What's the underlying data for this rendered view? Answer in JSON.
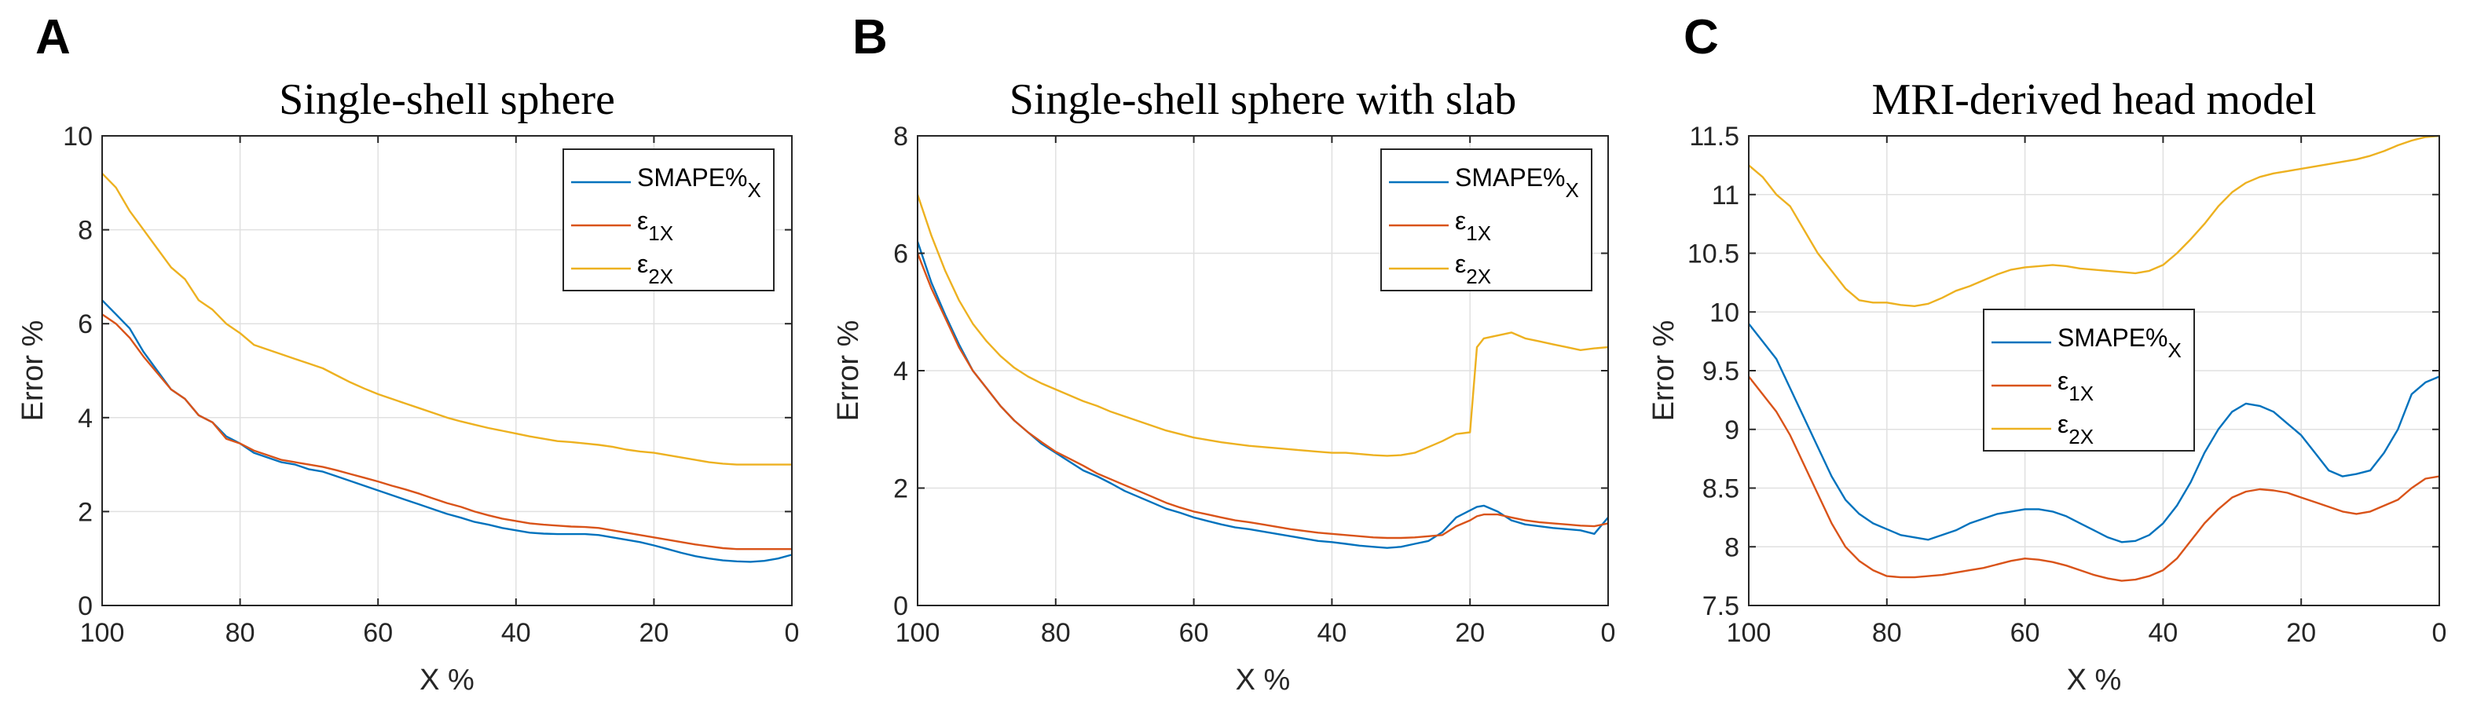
{
  "chart_data": [
    {
      "type": "line",
      "panel": "A",
      "title": "Single-shell sphere",
      "xlabel": "X %",
      "ylabel": "Error %",
      "xlim": [
        100,
        0
      ],
      "ylim": [
        0,
        10
      ],
      "xticks": [
        100,
        80,
        60,
        40,
        20,
        0
      ],
      "yticks": [
        0,
        2,
        4,
        6,
        8,
        10
      ],
      "grid": true,
      "legend_position": "top-right",
      "x": [
        100,
        98,
        96,
        94,
        92,
        90,
        88,
        86,
        84,
        82,
        80,
        78,
        76,
        74,
        72,
        70,
        68,
        66,
        64,
        62,
        60,
        58,
        56,
        54,
        52,
        50,
        48,
        46,
        44,
        42,
        40,
        38,
        36,
        34,
        32,
        30,
        28,
        26,
        24,
        22,
        20,
        18,
        16,
        14,
        12,
        10,
        8,
        6,
        4,
        2,
        0
      ],
      "series": [
        {
          "name": "SMAPE%X",
          "legend_main": "SMAPE%",
          "legend_sub": "X",
          "color": "#0072BD",
          "values": [
            6.5,
            6.2,
            5.9,
            5.4,
            5.0,
            4.6,
            4.4,
            4.05,
            3.9,
            3.6,
            3.45,
            3.25,
            3.15,
            3.05,
            3.0,
            2.9,
            2.85,
            2.75,
            2.65,
            2.55,
            2.45,
            2.35,
            2.25,
            2.15,
            2.05,
            1.95,
            1.87,
            1.78,
            1.72,
            1.65,
            1.6,
            1.55,
            1.53,
            1.52,
            1.52,
            1.52,
            1.5,
            1.45,
            1.4,
            1.35,
            1.28,
            1.2,
            1.12,
            1.05,
            1.0,
            0.96,
            0.94,
            0.93,
            0.95,
            1.0,
            1.08
          ]
        },
        {
          "name": "ε1X",
          "legend_main": "ε",
          "legend_sub": "1X",
          "color": "#D95319",
          "values": [
            6.2,
            6.0,
            5.7,
            5.3,
            4.95,
            4.6,
            4.4,
            4.05,
            3.9,
            3.55,
            3.45,
            3.3,
            3.2,
            3.1,
            3.05,
            3.0,
            2.95,
            2.88,
            2.8,
            2.72,
            2.64,
            2.55,
            2.47,
            2.38,
            2.28,
            2.18,
            2.1,
            2.0,
            1.92,
            1.85,
            1.8,
            1.75,
            1.72,
            1.7,
            1.68,
            1.67,
            1.65,
            1.6,
            1.55,
            1.5,
            1.45,
            1.4,
            1.35,
            1.3,
            1.26,
            1.22,
            1.2,
            1.2,
            1.2,
            1.2,
            1.2
          ]
        },
        {
          "name": "ε2X",
          "legend_main": "ε",
          "legend_sub": "2X",
          "color": "#EDB120",
          "values": [
            9.2,
            8.9,
            8.4,
            8.0,
            7.6,
            7.2,
            6.95,
            6.5,
            6.3,
            6.0,
            5.8,
            5.55,
            5.45,
            5.35,
            5.25,
            5.15,
            5.05,
            4.9,
            4.75,
            4.62,
            4.5,
            4.4,
            4.3,
            4.2,
            4.1,
            4.0,
            3.92,
            3.85,
            3.78,
            3.72,
            3.66,
            3.6,
            3.55,
            3.5,
            3.48,
            3.45,
            3.42,
            3.38,
            3.32,
            3.28,
            3.25,
            3.2,
            3.15,
            3.1,
            3.05,
            3.02,
            3.0,
            3.0,
            3.0,
            3.0,
            3.0
          ]
        }
      ]
    },
    {
      "type": "line",
      "panel": "B",
      "title": "Single-shell sphere with slab",
      "xlabel": "X %",
      "ylabel": "Error %",
      "xlim": [
        100,
        0
      ],
      "ylim": [
        0,
        8
      ],
      "xticks": [
        100,
        80,
        60,
        40,
        20,
        0
      ],
      "yticks": [
        0,
        2,
        4,
        6,
        8
      ],
      "grid": true,
      "legend_position": "top-right",
      "x": [
        100,
        98,
        96,
        94,
        92,
        90,
        88,
        86,
        84,
        82,
        80,
        78,
        76,
        74,
        72,
        70,
        68,
        66,
        64,
        62,
        60,
        58,
        56,
        54,
        52,
        50,
        48,
        46,
        44,
        42,
        40,
        38,
        36,
        34,
        32,
        30,
        28,
        26,
        24,
        22,
        20,
        19,
        18,
        16,
        14,
        12,
        10,
        8,
        6,
        4,
        2,
        0
      ],
      "series": [
        {
          "name": "SMAPE%X",
          "legend_main": "SMAPE%",
          "legend_sub": "X",
          "color": "#0072BD",
          "values": [
            6.2,
            5.5,
            4.95,
            4.45,
            4.0,
            3.7,
            3.4,
            3.15,
            2.95,
            2.75,
            2.6,
            2.45,
            2.3,
            2.2,
            2.08,
            1.95,
            1.85,
            1.75,
            1.65,
            1.58,
            1.5,
            1.44,
            1.38,
            1.33,
            1.3,
            1.26,
            1.22,
            1.18,
            1.14,
            1.1,
            1.08,
            1.05,
            1.02,
            1.0,
            0.98,
            1.0,
            1.05,
            1.1,
            1.25,
            1.5,
            1.62,
            1.68,
            1.7,
            1.6,
            1.45,
            1.38,
            1.35,
            1.32,
            1.3,
            1.28,
            1.22,
            1.5
          ]
        },
        {
          "name": "ε1X",
          "legend_main": "ε",
          "legend_sub": "1X",
          "color": "#D95319",
          "values": [
            6.0,
            5.4,
            4.9,
            4.4,
            4.0,
            3.7,
            3.4,
            3.15,
            2.95,
            2.78,
            2.62,
            2.5,
            2.38,
            2.25,
            2.15,
            2.05,
            1.95,
            1.85,
            1.75,
            1.67,
            1.6,
            1.55,
            1.5,
            1.45,
            1.42,
            1.38,
            1.34,
            1.3,
            1.27,
            1.24,
            1.22,
            1.2,
            1.18,
            1.16,
            1.15,
            1.15,
            1.16,
            1.18,
            1.2,
            1.35,
            1.45,
            1.52,
            1.55,
            1.55,
            1.5,
            1.45,
            1.42,
            1.4,
            1.38,
            1.36,
            1.35,
            1.4
          ]
        },
        {
          "name": "ε2X",
          "legend_main": "ε",
          "legend_sub": "2X",
          "color": "#EDB120",
          "values": [
            7.0,
            6.3,
            5.7,
            5.2,
            4.8,
            4.5,
            4.25,
            4.05,
            3.9,
            3.78,
            3.68,
            3.58,
            3.48,
            3.4,
            3.3,
            3.22,
            3.14,
            3.06,
            2.98,
            2.92,
            2.86,
            2.82,
            2.78,
            2.75,
            2.72,
            2.7,
            2.68,
            2.66,
            2.64,
            2.62,
            2.6,
            2.6,
            2.58,
            2.56,
            2.55,
            2.56,
            2.6,
            2.7,
            2.8,
            2.92,
            2.95,
            4.4,
            4.55,
            4.6,
            4.65,
            4.55,
            4.5,
            4.45,
            4.4,
            4.35,
            4.38,
            4.4
          ]
        }
      ]
    },
    {
      "type": "line",
      "panel": "C",
      "title": "MRI-derived head model",
      "xlabel": "X %",
      "ylabel": "Error %",
      "xlim": [
        100,
        0
      ],
      "ylim": [
        7.5,
        11.5
      ],
      "xticks": [
        100,
        80,
        60,
        40,
        20,
        0
      ],
      "yticks": [
        7.5,
        8,
        8.5,
        9,
        9.5,
        10,
        10.5,
        11,
        11.5
      ],
      "grid": true,
      "legend_position": "middle-left",
      "x": [
        100,
        98,
        96,
        94,
        92,
        90,
        88,
        86,
        84,
        82,
        80,
        78,
        76,
        74,
        72,
        70,
        68,
        66,
        64,
        62,
        60,
        58,
        56,
        54,
        52,
        50,
        48,
        46,
        44,
        42,
        40,
        38,
        36,
        34,
        32,
        30,
        28,
        26,
        24,
        22,
        20,
        18,
        16,
        14,
        12,
        10,
        8,
        6,
        4,
        2,
        0
      ],
      "series": [
        {
          "name": "SMAPE%X",
          "legend_main": "SMAPE%",
          "legend_sub": "X",
          "color": "#0072BD",
          "values": [
            9.9,
            9.75,
            9.6,
            9.35,
            9.1,
            8.85,
            8.6,
            8.4,
            8.28,
            8.2,
            8.15,
            8.1,
            8.08,
            8.06,
            8.1,
            8.14,
            8.2,
            8.24,
            8.28,
            8.3,
            8.32,
            8.32,
            8.3,
            8.26,
            8.2,
            8.14,
            8.08,
            8.04,
            8.05,
            8.1,
            8.2,
            8.35,
            8.55,
            8.8,
            9.0,
            9.15,
            9.22,
            9.2,
            9.15,
            9.05,
            8.95,
            8.8,
            8.65,
            8.6,
            8.62,
            8.65,
            8.8,
            9.0,
            9.3,
            9.4,
            9.45
          ]
        },
        {
          "name": "ε1X",
          "legend_main": "ε",
          "legend_sub": "1X",
          "color": "#D95319",
          "values": [
            9.45,
            9.3,
            9.15,
            8.95,
            8.7,
            8.45,
            8.2,
            8.0,
            7.88,
            7.8,
            7.75,
            7.74,
            7.74,
            7.75,
            7.76,
            7.78,
            7.8,
            7.82,
            7.85,
            7.88,
            7.9,
            7.89,
            7.87,
            7.84,
            7.8,
            7.76,
            7.73,
            7.71,
            7.72,
            7.75,
            7.8,
            7.9,
            8.05,
            8.2,
            8.32,
            8.42,
            8.47,
            8.49,
            8.48,
            8.46,
            8.42,
            8.38,
            8.34,
            8.3,
            8.28,
            8.3,
            8.35,
            8.4,
            8.5,
            8.58,
            8.6
          ]
        },
        {
          "name": "ε2X",
          "legend_main": "ε",
          "legend_sub": "2X",
          "color": "#EDB120",
          "values": [
            11.25,
            11.15,
            11.0,
            10.9,
            10.7,
            10.5,
            10.35,
            10.2,
            10.1,
            10.08,
            10.08,
            10.06,
            10.05,
            10.07,
            10.12,
            10.18,
            10.22,
            10.27,
            10.32,
            10.36,
            10.38,
            10.39,
            10.4,
            10.39,
            10.37,
            10.36,
            10.35,
            10.34,
            10.33,
            10.35,
            10.4,
            10.5,
            10.62,
            10.75,
            10.9,
            11.02,
            11.1,
            11.15,
            11.18,
            11.2,
            11.22,
            11.24,
            11.26,
            11.28,
            11.3,
            11.33,
            11.37,
            11.42,
            11.46,
            11.49,
            11.5
          ]
        }
      ]
    }
  ]
}
